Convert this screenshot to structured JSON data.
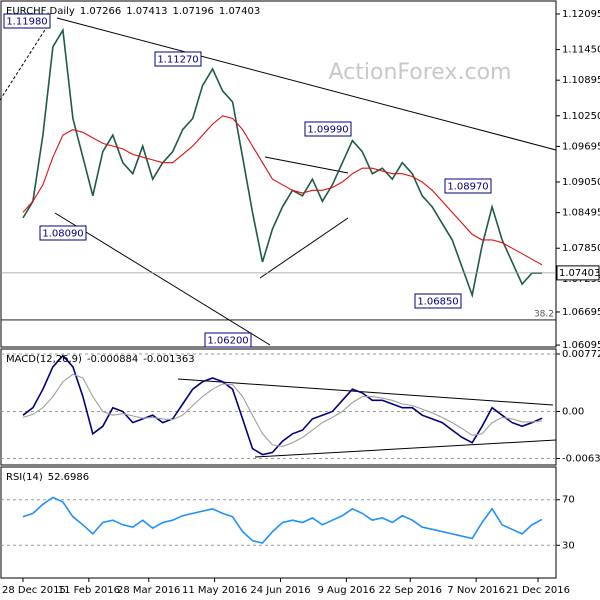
{
  "chart_data": [
    {
      "type": "line",
      "title": "EURCHF,Daily",
      "ohlc_header": [
        1.07266,
        1.07413,
        1.07196,
        1.07403
      ],
      "watermark": "ActionForex.com",
      "x": [
        0,
        5,
        10,
        15,
        20,
        25,
        30,
        35,
        40,
        45,
        50,
        55,
        60,
        65,
        70,
        75,
        80,
        85,
        90,
        95,
        100,
        105,
        110,
        115,
        120,
        125,
        130,
        135,
        140,
        145,
        150,
        155,
        160,
        165,
        170,
        175,
        180,
        185,
        190,
        195,
        200,
        205,
        210,
        215,
        220,
        225,
        230,
        235,
        240,
        245,
        250,
        255,
        260
      ],
      "xlim": [
        -11,
        267
      ],
      "ylim": [
        1.0606,
        1.1233
      ],
      "yticks": [
        1.12095,
        {
          "value": 1.1145,
          "label": "1.11450"
        },
        1.10895,
        {
          "value": 1.1025,
          "label": "1.10250"
        },
        1.09695,
        {
          "value": 1.0905,
          "label": "1.09050"
        },
        1.08495,
        {
          "value": 1.0785,
          "label": "1.07850"
        },
        1.07295,
        1.06695,
        1.06095
      ],
      "grid": false,
      "series": [
        {
          "color": "#1e5a4a",
          "values": [
            1.084,
            1.087,
            1.099,
            1.115,
            1.118,
            1.102,
            1.095,
            1.088,
            1.096,
            1.099,
            1.094,
            1.092,
            1.097,
            1.091,
            1.094,
            1.096,
            1.1,
            1.102,
            1.108,
            1.111,
            1.107,
            1.105,
            1.095,
            1.085,
            1.076,
            1.082,
            1.086,
            1.089,
            1.088,
            1.091,
            1.087,
            1.09,
            1.094,
            1.098,
            1.096,
            1.092,
            1.093,
            1.091,
            1.094,
            1.092,
            1.088,
            1.086,
            1.083,
            1.08,
            1.075,
            1.07,
            1.079,
            1.086,
            1.08,
            1.076,
            1.072,
            1.074,
            1.074
          ]
        },
        {
          "color": "#e01010",
          "values": [
            1.085,
            1.087,
            1.09,
            1.095,
            1.099,
            1.1,
            1.0995,
            1.0985,
            1.0975,
            1.097,
            1.0965,
            1.0955,
            1.095,
            1.0945,
            1.094,
            1.094,
            1.0955,
            1.097,
            1.099,
            1.101,
            1.1025,
            1.102,
            1.1,
            1.097,
            1.094,
            1.091,
            1.09,
            1.089,
            1.0885,
            1.089,
            1.089,
            1.0895,
            1.0905,
            1.092,
            1.093,
            1.093,
            1.0925,
            1.092,
            1.092,
            1.0915,
            1.0905,
            1.089,
            1.087,
            1.085,
            1.083,
            1.081,
            1.08,
            1.08,
            1.0795,
            1.0785,
            1.0775,
            1.0765,
            1.0755
          ]
        }
      ],
      "annotations": [
        {
          "value": 1.1198,
          "label": "1.11980"
        },
        {
          "value": 1.1127,
          "label": "1.11270"
        },
        {
          "value": 1.0809,
          "label": "1.08090"
        },
        {
          "value": 1.0999,
          "label": "1.09990"
        },
        {
          "value": 1.0897,
          "label": "1.08970"
        },
        {
          "value": 1.0685,
          "label": "1.06850"
        },
        {
          "value": 1.062,
          "label": "1.06200"
        }
      ],
      "last_price": 1.07403,
      "fib": {
        "ratio": 38.2,
        "price": 1.0655
      }
    },
    {
      "type": "line",
      "title": "MACD(12,26,9)",
      "header_values": [
        -0.000884,
        -0.001363
      ],
      "ylim": [
        -0.0072,
        0.0084
      ],
      "yticks": [
        0.007726,
        {
          "value": 0,
          "label": "0.00"
        },
        -0.006327
      ],
      "grid": true,
      "series": [
        {
          "color": "#000080",
          "values": [
            -0.0005,
            0.0005,
            0.003,
            0.006,
            0.0075,
            0.006,
            0.002,
            -0.003,
            -0.002,
            0.0005,
            0.0,
            -0.0015,
            -0.001,
            -0.0005,
            -0.0015,
            -0.001,
            0.001,
            0.003,
            0.004,
            0.0045,
            0.004,
            0.003,
            -0.001,
            -0.005,
            -0.0058,
            -0.0055,
            -0.004,
            -0.003,
            -0.0025,
            -0.001,
            -0.0005,
            0.0,
            0.0015,
            0.003,
            0.0025,
            0.0015,
            0.0015,
            0.001,
            0.0005,
            0.0005,
            -0.0005,
            -0.001,
            -0.0015,
            -0.0025,
            -0.0035,
            -0.0042,
            -0.002,
            0.0005,
            -0.0005,
            -0.0015,
            -0.002,
            -0.0015,
            -0.0009
          ]
        },
        {
          "color": "#a0a0a0",
          "values": [
            -0.0008,
            -0.0004,
            0.0005,
            0.002,
            0.004,
            0.005,
            0.0045,
            0.002,
            0.0,
            -0.0005,
            -0.0003,
            -0.0006,
            -0.0009,
            -0.0008,
            -0.001,
            -0.0011,
            -0.0005,
            0.0008,
            0.002,
            0.003,
            0.0037,
            0.0036,
            0.002,
            -0.0005,
            -0.003,
            -0.0045,
            -0.0047,
            -0.0042,
            -0.0035,
            -0.0025,
            -0.0015,
            -0.0008,
            0.0,
            0.0012,
            0.002,
            0.002,
            0.0018,
            0.0015,
            0.001,
            0.0008,
            0.0003,
            -0.0002,
            -0.0008,
            -0.0015,
            -0.0023,
            -0.0032,
            -0.003,
            -0.0015,
            -0.0008,
            -0.001,
            -0.0014,
            -0.0014,
            -0.0013
          ]
        }
      ]
    },
    {
      "type": "line",
      "title": "RSI(14)",
      "header_values": [
        52.6986
      ],
      "ylim": [
        1.3,
        98.7
      ],
      "yticks": [
        70,
        30
      ],
      "grid": true,
      "xticks": [
        {
          "value": 0,
          "label": "28 Dec 2015"
        },
        {
          "value": 33,
          "label": "11 Feb 2016"
        },
        {
          "value": 63,
          "label": "28 Mar 2016"
        },
        {
          "value": 96,
          "label": "11 May 2016"
        },
        {
          "value": 129,
          "label": "24 Jun 2016"
        },
        {
          "value": 162,
          "label": "9 Aug 2016"
        },
        {
          "value": 194,
          "label": "22 Sep 2016"
        },
        {
          "value": 227,
          "label": "7 Nov 2016"
        },
        {
          "value": 258,
          "label": "21 Dec 2016"
        }
      ],
      "series": [
        {
          "color": "#1e90ff",
          "values": [
            55,
            58,
            66,
            72,
            68,
            55,
            48,
            40,
            50,
            52,
            48,
            46,
            52,
            45,
            50,
            52,
            56,
            58,
            60,
            62,
            58,
            55,
            42,
            34,
            32,
            42,
            50,
            52,
            50,
            54,
            48,
            52,
            56,
            62,
            58,
            52,
            54,
            50,
            56,
            52,
            46,
            44,
            42,
            40,
            38,
            36,
            50,
            62,
            48,
            44,
            40,
            48,
            52.7
          ]
        }
      ]
    }
  ]
}
